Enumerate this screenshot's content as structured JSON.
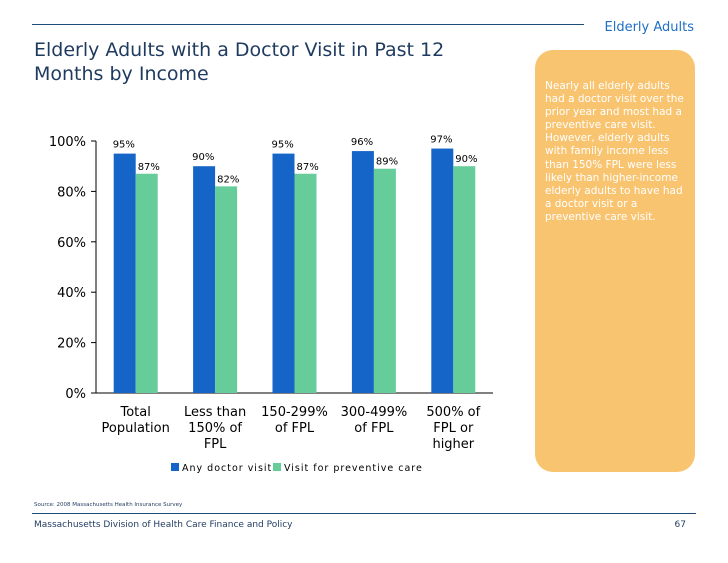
{
  "header": {
    "section_label": "Elderly Adults",
    "title": "Elderly Adults with a Doctor Visit in Past 12 Months by Income"
  },
  "callout": {
    "text": "Nearly all elderly adults had a doctor visit over the prior year and most had a preventive care visit. However, elderly adults with family income less than 150% FPL were less likely than higher-income elderly adults to have had a doctor visit or a preventive care visit."
  },
  "chart_data": {
    "type": "bar",
    "categories": [
      [
        "Total",
        "Population"
      ],
      [
        "Less than",
        "150% of",
        "FPL"
      ],
      [
        "150-299%",
        "of FPL"
      ],
      [
        "300-499%",
        "of FPL"
      ],
      [
        "500% of",
        "FPL or",
        "higher"
      ]
    ],
    "series": [
      {
        "name": "Any doctor visit",
        "values": [
          95,
          90,
          95,
          96,
          97
        ],
        "color": "#1565c8"
      },
      {
        "name": "Visit for preventive care",
        "values": [
          87,
          82,
          87,
          89,
          90
        ],
        "color": "#66cc99"
      }
    ],
    "y_ticks": [
      "0%",
      "20%",
      "40%",
      "60%",
      "80%",
      "100%"
    ],
    "ylim": [
      0,
      100
    ],
    "value_suffix": "%",
    "legend_position": "bottom",
    "grid": false
  },
  "footer": {
    "source": "Source: 2008 Massachusetts Health Insurance Survey",
    "org": "Massachusetts Division of Health Care Finance and Policy",
    "page": "67"
  }
}
